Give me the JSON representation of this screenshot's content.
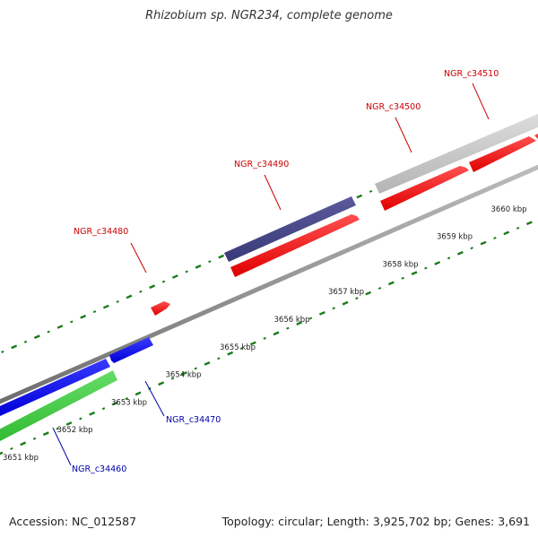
{
  "title": "Rhizobium sp. NGR234, complete genome",
  "footer": {
    "accession": "Accession: NC_012587",
    "info": "Topology: circular; Length: 3,925,702 bp; Genes: 3,691"
  },
  "scale_labels": [
    "3651 kbp",
    "3652 kbp",
    "3653 kbp",
    "3654 kbp",
    "3655 kbp",
    "3656 kbp",
    "3657 kbp",
    "3658 kbp",
    "3659 kbp",
    "3660 kbp"
  ],
  "genes": [
    {
      "label": "NGR_c34460",
      "color": "#0000aa"
    },
    {
      "label": "NGR_c34470",
      "color": "#0000aa"
    },
    {
      "label": "NGR_c34480",
      "color": "#cc0000"
    },
    {
      "label": "NGR_c34490",
      "color": "#cc0000"
    },
    {
      "label": "NGR_c34500",
      "color": "#cc0000"
    },
    {
      "label": "NGR_c34510",
      "color": "#cc0000"
    }
  ],
  "colors": {
    "backbone": "#8a8a8a",
    "tick": "#1a7a1a",
    "cds": "#ff0000",
    "gene_blue": "#0000ee",
    "gene_green": "#44cc44",
    "gene_purple": "#4a4a8c",
    "gene_gray": "#c8c8c8"
  }
}
